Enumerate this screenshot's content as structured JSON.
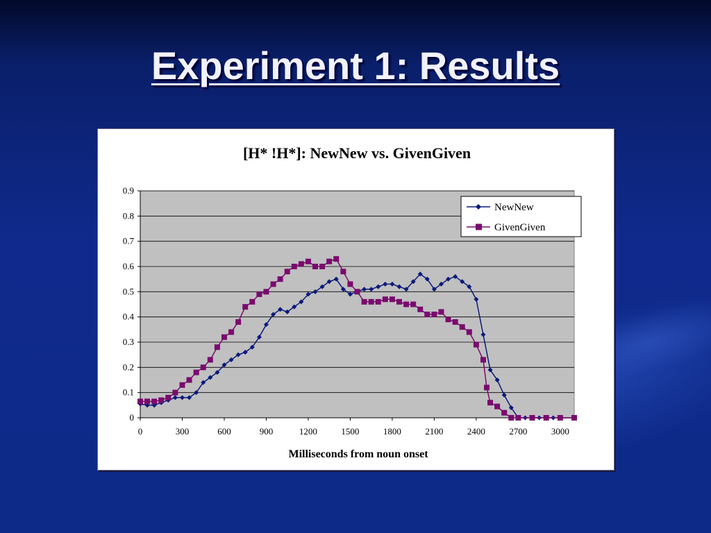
{
  "slide": {
    "title": "Experiment 1: Results"
  },
  "colors": {
    "background": "#0f2a8c",
    "newnew": "#0a1a7a",
    "givengiven": "#7a0a6e",
    "plot_area": "#c0c0c0"
  },
  "chart_data": {
    "type": "line",
    "title": "[H* !H*]: NewNew vs. GivenGiven",
    "xlabel": "Milliseconds from noun onset",
    "ylabel": "",
    "xlim": [
      0,
      3100
    ],
    "ylim": [
      0,
      0.9
    ],
    "xticks": [
      0,
      300,
      600,
      900,
      1200,
      1500,
      1800,
      2100,
      2400,
      2700,
      3000
    ],
    "yticks": [
      0,
      0.1,
      0.2,
      0.3,
      0.4,
      0.5,
      0.6,
      0.7,
      0.8,
      0.9
    ],
    "xtick_labels": [
      "0",
      "300",
      "600",
      "900",
      "1200",
      "1500",
      "1800",
      "2100",
      "2400",
      "2700",
      "3000"
    ],
    "ytick_labels": [
      "0",
      "0.1",
      "0.2",
      "0.3",
      "0.4",
      "0.5",
      "0.6",
      "0.7",
      "0.8",
      "0.9"
    ],
    "grid": "horizontal",
    "legend_position": "top-right",
    "series": [
      {
        "name": "NewNew",
        "marker": "diamond",
        "points": [
          [
            0,
            0.055
          ],
          [
            50,
            0.05
          ],
          [
            100,
            0.05
          ],
          [
            150,
            0.06
          ],
          [
            200,
            0.07
          ],
          [
            250,
            0.08
          ],
          [
            300,
            0.08
          ],
          [
            350,
            0.08
          ],
          [
            400,
            0.1
          ],
          [
            450,
            0.14
          ],
          [
            500,
            0.16
          ],
          [
            550,
            0.18
          ],
          [
            600,
            0.21
          ],
          [
            650,
            0.23
          ],
          [
            700,
            0.25
          ],
          [
            750,
            0.26
          ],
          [
            800,
            0.28
          ],
          [
            850,
            0.32
          ],
          [
            900,
            0.37
          ],
          [
            950,
            0.41
          ],
          [
            1000,
            0.43
          ],
          [
            1050,
            0.42
          ],
          [
            1100,
            0.44
          ],
          [
            1150,
            0.46
          ],
          [
            1200,
            0.49
          ],
          [
            1250,
            0.5
          ],
          [
            1300,
            0.52
          ],
          [
            1350,
            0.54
          ],
          [
            1400,
            0.55
          ],
          [
            1450,
            0.51
          ],
          [
            1500,
            0.49
          ],
          [
            1550,
            0.5
          ],
          [
            1600,
            0.51
          ],
          [
            1650,
            0.51
          ],
          [
            1700,
            0.52
          ],
          [
            1750,
            0.53
          ],
          [
            1800,
            0.53
          ],
          [
            1850,
            0.52
          ],
          [
            1900,
            0.51
          ],
          [
            1950,
            0.54
          ],
          [
            2000,
            0.57
          ],
          [
            2050,
            0.55
          ],
          [
            2100,
            0.51
          ],
          [
            2150,
            0.53
          ],
          [
            2200,
            0.55
          ],
          [
            2250,
            0.56
          ],
          [
            2300,
            0.54
          ],
          [
            2350,
            0.52
          ],
          [
            2400,
            0.47
          ],
          [
            2450,
            0.33
          ],
          [
            2500,
            0.19
          ],
          [
            2550,
            0.15
          ],
          [
            2600,
            0.09
          ],
          [
            2650,
            0.04
          ],
          [
            2700,
            0.0
          ],
          [
            2750,
            0.0
          ],
          [
            2800,
            0.0
          ],
          [
            2850,
            0.0
          ],
          [
            2900,
            0.0
          ],
          [
            2950,
            0.0
          ],
          [
            3000,
            0.0
          ],
          [
            3100,
            0.0
          ]
        ]
      },
      {
        "name": "GivenGiven",
        "marker": "square",
        "points": [
          [
            0,
            0.065
          ],
          [
            50,
            0.065
          ],
          [
            100,
            0.065
          ],
          [
            150,
            0.07
          ],
          [
            200,
            0.08
          ],
          [
            250,
            0.1
          ],
          [
            300,
            0.13
          ],
          [
            350,
            0.15
          ],
          [
            400,
            0.18
          ],
          [
            450,
            0.2
          ],
          [
            500,
            0.23
          ],
          [
            550,
            0.28
          ],
          [
            600,
            0.32
          ],
          [
            650,
            0.34
          ],
          [
            700,
            0.38
          ],
          [
            750,
            0.44
          ],
          [
            800,
            0.46
          ],
          [
            850,
            0.49
          ],
          [
            900,
            0.5
          ],
          [
            950,
            0.53
          ],
          [
            1000,
            0.55
          ],
          [
            1050,
            0.58
          ],
          [
            1100,
            0.6
          ],
          [
            1150,
            0.61
          ],
          [
            1200,
            0.62
          ],
          [
            1250,
            0.6
          ],
          [
            1300,
            0.6
          ],
          [
            1350,
            0.62
          ],
          [
            1400,
            0.63
          ],
          [
            1450,
            0.58
          ],
          [
            1500,
            0.53
          ],
          [
            1550,
            0.5
          ],
          [
            1600,
            0.46
          ],
          [
            1650,
            0.46
          ],
          [
            1700,
            0.46
          ],
          [
            1750,
            0.47
          ],
          [
            1800,
            0.47
          ],
          [
            1850,
            0.46
          ],
          [
            1900,
            0.45
          ],
          [
            1950,
            0.45
          ],
          [
            2000,
            0.43
          ],
          [
            2050,
            0.41
          ],
          [
            2100,
            0.41
          ],
          [
            2150,
            0.42
          ],
          [
            2200,
            0.39
          ],
          [
            2250,
            0.38
          ],
          [
            2300,
            0.36
          ],
          [
            2350,
            0.34
          ],
          [
            2400,
            0.29
          ],
          [
            2450,
            0.23
          ],
          [
            2475,
            0.12
          ],
          [
            2500,
            0.06
          ],
          [
            2550,
            0.045
          ],
          [
            2600,
            0.02
          ],
          [
            2650,
            0.0
          ],
          [
            2700,
            0.0
          ],
          [
            2800,
            0.0
          ],
          [
            2900,
            0.0
          ],
          [
            3000,
            0.0
          ],
          [
            3100,
            0.0
          ]
        ]
      }
    ]
  }
}
